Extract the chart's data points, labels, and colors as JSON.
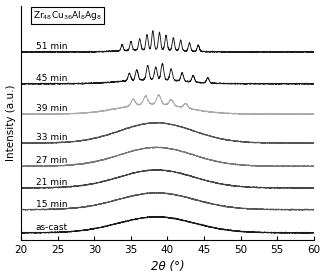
{
  "xlabel": "2θ (°)",
  "ylabel": "Intensity (a.u.)",
  "xlim": [
    20,
    60
  ],
  "xticks": [
    20,
    25,
    30,
    35,
    40,
    45,
    50,
    55,
    60
  ],
  "labels": [
    "51 min",
    "45 min",
    "39 min",
    "33 min",
    "27 min",
    "21 min",
    "15 min",
    "as-cast"
  ],
  "offsets": [
    7.0,
    5.9,
    4.85,
    3.85,
    3.05,
    2.3,
    1.55,
    0.75
  ],
  "colors": [
    "#1a1a1a",
    "#1a1a1a",
    "#aaaaaa",
    "#555555",
    "#777777",
    "#444444",
    "#555555",
    "#1a1a1a"
  ],
  "bg_color": "#ffffff",
  "noise_level": 0.008
}
